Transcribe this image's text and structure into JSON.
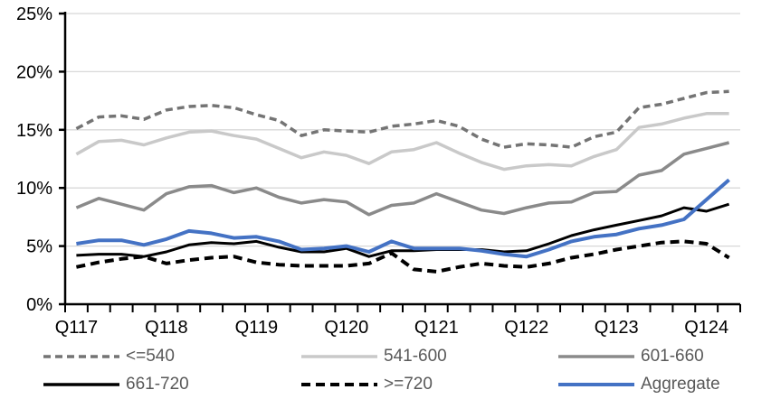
{
  "page": {
    "background": "#ffffff"
  },
  "chart_data": {
    "type": "line",
    "title": "",
    "xlabel": "",
    "ylabel": "",
    "ylim": [
      0,
      25
    ],
    "grid": "horizontal-only",
    "gridline_color": "#d8d8d8",
    "axis_color": "#000000",
    "legend_position": "bottom",
    "legend_text_color": "#595959",
    "x_count": 30,
    "ytick_labels": [
      "0%",
      "5%",
      "10%",
      "15%",
      "20%",
      "25%"
    ],
    "ytick_values": [
      0,
      5,
      10,
      15,
      20,
      25
    ],
    "xtick_labels": [
      "Q117",
      "Q118",
      "Q119",
      "Q120",
      "Q121",
      "Q122",
      "Q123",
      "Q124"
    ],
    "xtick_positions": [
      0,
      4,
      8,
      12,
      16,
      20,
      24,
      28
    ],
    "series": [
      {
        "name": "<=540",
        "color": "#747474",
        "width": 3.5,
        "dash": "8 5",
        "values": [
          15.1,
          16.1,
          16.2,
          15.9,
          16.7,
          17.0,
          17.1,
          16.9,
          16.3,
          15.8,
          14.5,
          15.0,
          14.9,
          14.8,
          15.3,
          15.5,
          15.8,
          15.3,
          14.2,
          13.5,
          13.8,
          13.7,
          13.5,
          14.4,
          14.8,
          16.9,
          17.2,
          17.7,
          18.2,
          18.3
        ]
      },
      {
        "name": "541-600",
        "color": "#c9c9c9",
        "width": 3.5,
        "dash": null,
        "values": [
          12.9,
          14.0,
          14.1,
          13.7,
          14.3,
          14.8,
          14.9,
          14.5,
          14.2,
          13.4,
          12.6,
          13.1,
          12.8,
          12.1,
          13.1,
          13.3,
          13.9,
          13.0,
          12.2,
          11.6,
          11.9,
          12.0,
          11.9,
          12.7,
          13.3,
          15.2,
          15.5,
          16.0,
          16.4,
          16.4
        ]
      },
      {
        "name": "601-660",
        "color": "#8a8a8a",
        "width": 3.5,
        "dash": null,
        "values": [
          8.3,
          9.1,
          8.6,
          8.1,
          9.5,
          10.1,
          10.2,
          9.6,
          10.0,
          9.2,
          8.7,
          9.0,
          8.8,
          7.7,
          8.5,
          8.7,
          9.5,
          8.8,
          8.1,
          7.8,
          8.3,
          8.7,
          8.8,
          9.6,
          9.7,
          11.1,
          11.5,
          12.9,
          13.4,
          13.9
        ]
      },
      {
        "name": "661-720",
        "color": "#000000",
        "width": 3,
        "dash": null,
        "values": [
          4.2,
          4.3,
          4.3,
          4.1,
          4.5,
          5.1,
          5.3,
          5.2,
          5.4,
          4.9,
          4.5,
          4.5,
          4.8,
          4.1,
          4.6,
          4.6,
          4.7,
          4.7,
          4.7,
          4.5,
          4.6,
          5.2,
          5.9,
          6.4,
          6.8,
          7.2,
          7.6,
          8.3,
          8.0,
          8.6
        ]
      },
      {
        "name": ">=720",
        "color": "#000000",
        "width": 4,
        "dash": "10 6",
        "values": [
          3.2,
          3.6,
          3.9,
          4.1,
          3.5,
          3.8,
          4.0,
          4.1,
          3.6,
          3.4,
          3.3,
          3.3,
          3.3,
          3.5,
          4.4,
          3.0,
          2.8,
          3.2,
          3.5,
          3.3,
          3.2,
          3.5,
          4.0,
          4.3,
          4.7,
          5.0,
          5.3,
          5.4,
          5.2,
          4.0
        ]
      },
      {
        "name": "Aggregate",
        "color": "#4472c4",
        "width": 4,
        "dash": null,
        "values": [
          5.2,
          5.5,
          5.5,
          5.1,
          5.6,
          6.3,
          6.1,
          5.7,
          5.8,
          5.4,
          4.7,
          4.8,
          5.0,
          4.5,
          5.4,
          4.8,
          4.8,
          4.8,
          4.6,
          4.3,
          4.1,
          4.7,
          5.4,
          5.8,
          6.0,
          6.5,
          6.8,
          7.3,
          9.0,
          10.7
        ]
      }
    ]
  },
  "legend": {
    "row1": [
      "<=540",
      "541-600",
      "601-660"
    ],
    "row2": [
      "661-720",
      ">=720",
      "Aggregate"
    ]
  }
}
